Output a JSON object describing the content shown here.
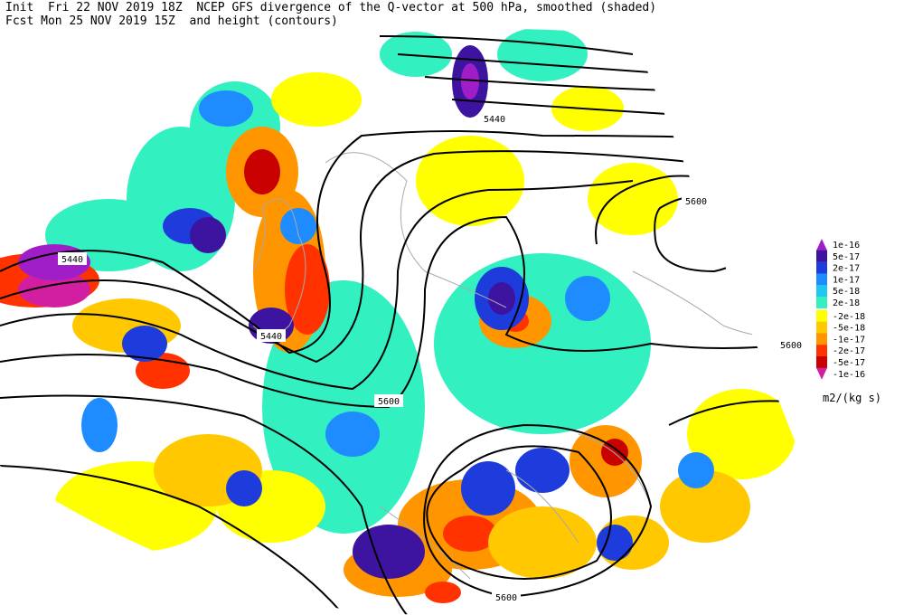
{
  "header": {
    "line1": "Init  Fri 22 NOV 2019 18Z  NCEP GFS divergence of the Q-vector at 500 hPa, smoothed (shaded)",
    "line2": "Fcst Mon 25 NOV 2019 15Z  and height (contours)"
  },
  "contour_labels": [
    "5440",
    "5440",
    "5440",
    "5600",
    "5600",
    "5600",
    "5600"
  ],
  "legend": {
    "unit": "m2/(kg s)",
    "items": [
      {
        "label": "1e-16",
        "color": "#a01ec8"
      },
      {
        "label": "5e-17",
        "color": "#3c14a0"
      },
      {
        "label": "2e-17",
        "color": "#1e3cdc"
      },
      {
        "label": "1e-17",
        "color": "#1e8cff"
      },
      {
        "label": "5e-18",
        "color": "#1ec8f0"
      },
      {
        "label": "2e-18",
        "color": "#32f0c0"
      },
      {
        "label": "-2e-18",
        "color": "#ffff00"
      },
      {
        "label": "-5e-18",
        "color": "#ffc800"
      },
      {
        "label": "-1e-17",
        "color": "#ff9600"
      },
      {
        "label": "-2e-17",
        "color": "#ff3200"
      },
      {
        "label": "-5e-17",
        "color": "#c80000"
      },
      {
        "label": "-1e-16",
        "color": "#d21ea0"
      }
    ]
  }
}
